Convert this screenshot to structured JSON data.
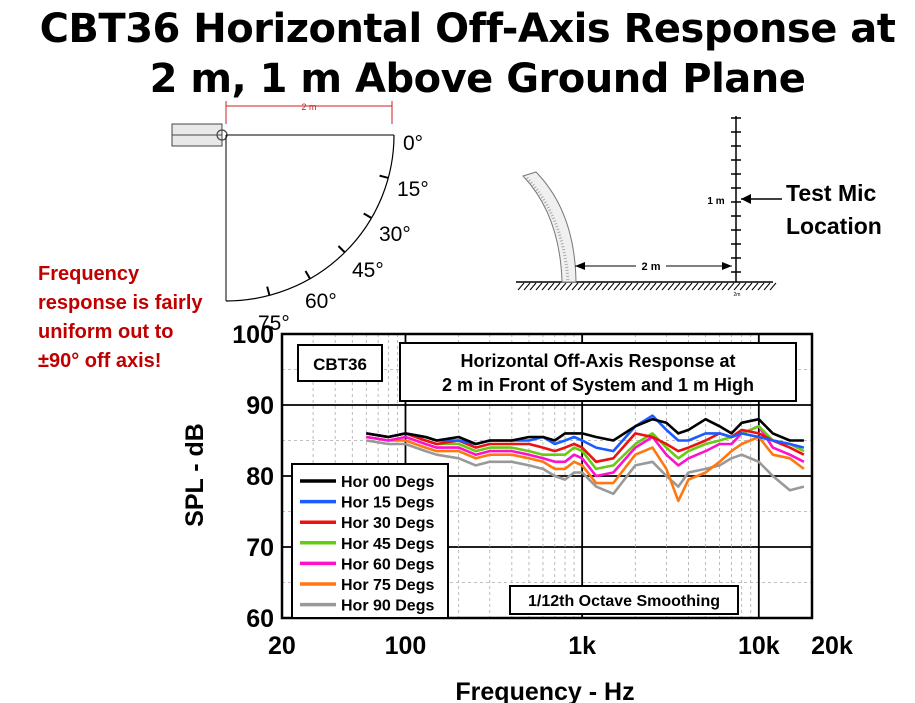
{
  "title_line1": "CBT36 Horizontal Off-Axis Response at",
  "title_line2": "2 m, 1 m Above Ground Plane",
  "side_note": "Frequency response is fairly uniform out to ±90° off axis!",
  "top_view": {
    "dimension_label": "2 m",
    "angle_labels": [
      "0°",
      "15°",
      "30°",
      "45°",
      "60°",
      "75°"
    ]
  },
  "side_view": {
    "height_label": "1 m",
    "distance_label": "2 m",
    "mic_label_line1": "Test Mic",
    "mic_label_line2": "Location",
    "base_label": "2m"
  },
  "chart_data": {
    "type": "line",
    "badge": "CBT36",
    "title": "Horizontal Off-Axis Response at",
    "subtitle": "2 m in Front of System and 1 m High",
    "xlabel": "Frequency - Hz",
    "ylabel": "SPL - dB",
    "xscale": "log",
    "xlim": [
      20,
      20000
    ],
    "ylim": [
      60,
      100
    ],
    "xticks": [
      20,
      100,
      1000,
      10000,
      20000
    ],
    "xtick_labels": [
      "20",
      "100",
      "1k",
      "10k",
      "20k"
    ],
    "yticks": [
      60,
      70,
      80,
      90,
      100
    ],
    "ytick_labels": [
      "60",
      "70",
      "80",
      "90",
      "100"
    ],
    "grid": true,
    "legend_position": "bottom-left",
    "annotation": "1/12th Octave Smoothing",
    "x": [
      60,
      80,
      100,
      130,
      150,
      200,
      250,
      300,
      400,
      500,
      600,
      700,
      800,
      900,
      1000,
      1200,
      1500,
      2000,
      2500,
      3000,
      3500,
      4000,
      5000,
      6000,
      7000,
      8000,
      10000,
      12000,
      15000,
      18000
    ],
    "series": [
      {
        "name": "Hor 00 Degs",
        "color": "#000000",
        "values": [
          86,
          85.5,
          86,
          85.5,
          85,
          85.5,
          84.5,
          85,
          85,
          85.5,
          85.5,
          85,
          86,
          86,
          86,
          85.5,
          85,
          87,
          88,
          87.5,
          86,
          86.5,
          88,
          87,
          86,
          87.5,
          88,
          86,
          85,
          85
        ]
      },
      {
        "name": "Hor 15 Degs",
        "color": "#1a5cff",
        "values": [
          86,
          85.5,
          86,
          85.5,
          85,
          85,
          84.5,
          85,
          85,
          85,
          85.5,
          84.5,
          85,
          85.5,
          85,
          84,
          83.5,
          87,
          88.5,
          86.5,
          85,
          85,
          86,
          86,
          85.5,
          86,
          85.5,
          85,
          84.5,
          84
        ]
      },
      {
        "name": "Hor 30 Degs",
        "color": "#ee1111",
        "values": [
          86,
          85.5,
          86,
          85,
          84.5,
          85,
          84,
          84.5,
          84.5,
          84.5,
          84,
          83.5,
          84,
          84.5,
          84,
          82,
          82.5,
          86,
          85.5,
          84.5,
          83.5,
          84,
          85,
          86,
          85.5,
          86.5,
          86,
          85,
          84,
          83
        ]
      },
      {
        "name": "Hor 45 Degs",
        "color": "#66cc11",
        "values": [
          86,
          85.5,
          86,
          85,
          84.5,
          84.5,
          83.5,
          84,
          84,
          83.5,
          83,
          83,
          83,
          84,
          83.5,
          81,
          81.5,
          84.5,
          86,
          84,
          82.5,
          83.5,
          84.5,
          85,
          85.5,
          86,
          87,
          85,
          84.5,
          83.5
        ]
      },
      {
        "name": "Hor 60 Degs",
        "color": "#ff11cc",
        "values": [
          85.5,
          85,
          85.5,
          84.5,
          84,
          84,
          83,
          83.5,
          83.5,
          83,
          82.5,
          82,
          82,
          83,
          82.5,
          80,
          80.5,
          84,
          85.5,
          83,
          81.5,
          82.5,
          83.5,
          84.5,
          84.5,
          86,
          87,
          84,
          83,
          82
        ]
      },
      {
        "name": "Hor 75 Degs",
        "color": "#ff7711",
        "values": [
          85.5,
          85,
          85,
          84,
          83.5,
          83.5,
          82.5,
          83,
          83,
          82.5,
          82,
          81,
          81,
          82,
          81.5,
          79,
          79,
          83,
          84,
          81,
          76.5,
          79.5,
          80.5,
          82,
          83.5,
          84.5,
          85.5,
          83,
          82.5,
          81
        ]
      },
      {
        "name": "Hor 90 Degs",
        "color": "#999999",
        "values": [
          85,
          84.5,
          84.5,
          83.5,
          83,
          82.5,
          81.5,
          82,
          82,
          81.5,
          81,
          80,
          79.5,
          80.5,
          80.5,
          78.5,
          77.5,
          81.5,
          82,
          80,
          78.5,
          80.5,
          81,
          81.5,
          82.5,
          83,
          82,
          80,
          78,
          78.5
        ]
      }
    ]
  }
}
